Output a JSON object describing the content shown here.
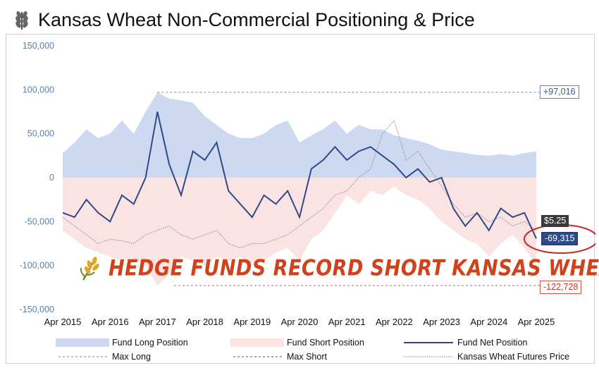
{
  "title": "Kansas Wheat Non-Commercial Positioning & Price",
  "banner": "HEDGE FUNDS RECORD SHORT KANSAS WHEAT",
  "colors": {
    "long_fill": "#cdd9f0",
    "short_fill": "#fbe3e4",
    "net_line": "#2e4a86",
    "price_line": "#888888",
    "max_long_line": "#6f86ad",
    "max_short_line": "#d9534f",
    "banner": "#d0421b",
    "axis_text": "#5a7fae"
  },
  "callouts": {
    "max_long": "+97,016",
    "max_short": "-122,728",
    "net_latest": "-69,315",
    "price_latest": "$5.25"
  },
  "chart_data": {
    "type": "area",
    "title": "Kansas Wheat Non-Commercial Positioning & Price",
    "xlabel": "",
    "ylabel": "",
    "ylim": [
      -150000,
      150000
    ],
    "y_ticks": [
      "150,000",
      "100,000",
      "50,000",
      "0",
      "-50,000",
      "-100,000",
      "-150,000"
    ],
    "y_tick_values": [
      150000,
      100000,
      50000,
      0,
      -50000,
      -100000,
      -150000
    ],
    "x_ticks": [
      "Apr 2015",
      "Apr 2016",
      "Apr 2017",
      "Apr 2018",
      "Apr 2019",
      "Apr 2020",
      "Apr 2021",
      "Apr 2022",
      "Apr 2023",
      "Apr 2024",
      "Apr 2025"
    ],
    "x_tick_years": [
      2015.25,
      2016.25,
      2017.25,
      2018.25,
      2019.25,
      2020.25,
      2021.25,
      2022.25,
      2023.25,
      2024.25,
      2025.25
    ],
    "grid": false,
    "legend_placement": "bottom",
    "legend": [
      {
        "label": "Fund Long Position",
        "style": "long-fill"
      },
      {
        "label": "Fund Short Position",
        "style": "short-fill"
      },
      {
        "label": "Fund Net Position",
        "style": "net-line"
      },
      {
        "label": "Max Long",
        "style": "max-long-line"
      },
      {
        "label": "Max Short",
        "style": "max-short-line"
      },
      {
        "label": "Kansas Wheat Futures Price",
        "style": "price-line"
      }
    ],
    "reference_lines": {
      "max_long": 97016,
      "max_short": -122728
    },
    "x": [
      2015.25,
      2015.5,
      2015.75,
      2016.0,
      2016.25,
      2016.5,
      2016.75,
      2017.0,
      2017.25,
      2017.5,
      2017.75,
      2018.0,
      2018.25,
      2018.5,
      2018.75,
      2019.0,
      2019.25,
      2019.5,
      2019.75,
      2020.0,
      2020.25,
      2020.5,
      2020.75,
      2021.0,
      2021.25,
      2021.5,
      2021.75,
      2022.0,
      2022.25,
      2022.5,
      2022.75,
      2023.0,
      2023.25,
      2023.5,
      2023.75,
      2024.0,
      2024.25,
      2024.5,
      2024.75,
      2025.0,
      2025.25
    ],
    "series": [
      {
        "name": "Fund Long Position",
        "values": [
          28000,
          40000,
          55000,
          45000,
          50000,
          65000,
          50000,
          75000,
          97016,
          90000,
          88000,
          85000,
          70000,
          60000,
          50000,
          45000,
          45000,
          50000,
          60000,
          65000,
          40000,
          48000,
          55000,
          65000,
          50000,
          60000,
          55000,
          55000,
          48000,
          45000,
          42000,
          38000,
          32000,
          30000,
          28000,
          26000,
          25000,
          27000,
          25000,
          28000,
          30000
        ]
      },
      {
        "name": "Fund Short Position",
        "values": [
          -60000,
          -70000,
          -80000,
          -85000,
          -90000,
          -95000,
          -92000,
          -100000,
          -122728,
          -110000,
          -90000,
          -95000,
          -100000,
          -90000,
          -95000,
          -90000,
          -100000,
          -95000,
          -85000,
          -80000,
          -95000,
          -70000,
          -60000,
          -40000,
          -20000,
          -30000,
          -15000,
          -20000,
          -10000,
          -20000,
          -25000,
          -35000,
          -50000,
          -60000,
          -70000,
          -75000,
          -90000,
          -75000,
          -65000,
          -80000,
          -100000
        ]
      },
      {
        "name": "Fund Net Position",
        "values": [
          -40000,
          -45000,
          -25000,
          -40000,
          -50000,
          -20000,
          -30000,
          0,
          75000,
          15000,
          -20000,
          30000,
          20000,
          40000,
          -15000,
          -30000,
          -45000,
          -20000,
          -30000,
          -15000,
          -45000,
          10000,
          20000,
          35000,
          20000,
          30000,
          35000,
          25000,
          15000,
          0,
          10000,
          -5000,
          0,
          -35000,
          -55000,
          -40000,
          -60000,
          -35000,
          -45000,
          -40000,
          -69315
        ]
      },
      {
        "name": "Kansas Wheat Futures Price",
        "values": [
          -45000,
          -55000,
          -65000,
          -75000,
          -70000,
          -72000,
          -75000,
          -65000,
          -60000,
          -55000,
          -65000,
          -70000,
          -65000,
          -60000,
          -75000,
          -80000,
          -75000,
          -75000,
          -70000,
          -65000,
          -55000,
          -45000,
          -35000,
          -20000,
          -15000,
          0,
          10000,
          50000,
          65000,
          20000,
          30000,
          10000,
          -10000,
          -30000,
          -45000,
          -40000,
          -50000,
          -45000,
          -55000,
          -50000,
          -60000
        ]
      }
    ]
  },
  "price_axis_note": "Price series plotted on the position axis scale"
}
